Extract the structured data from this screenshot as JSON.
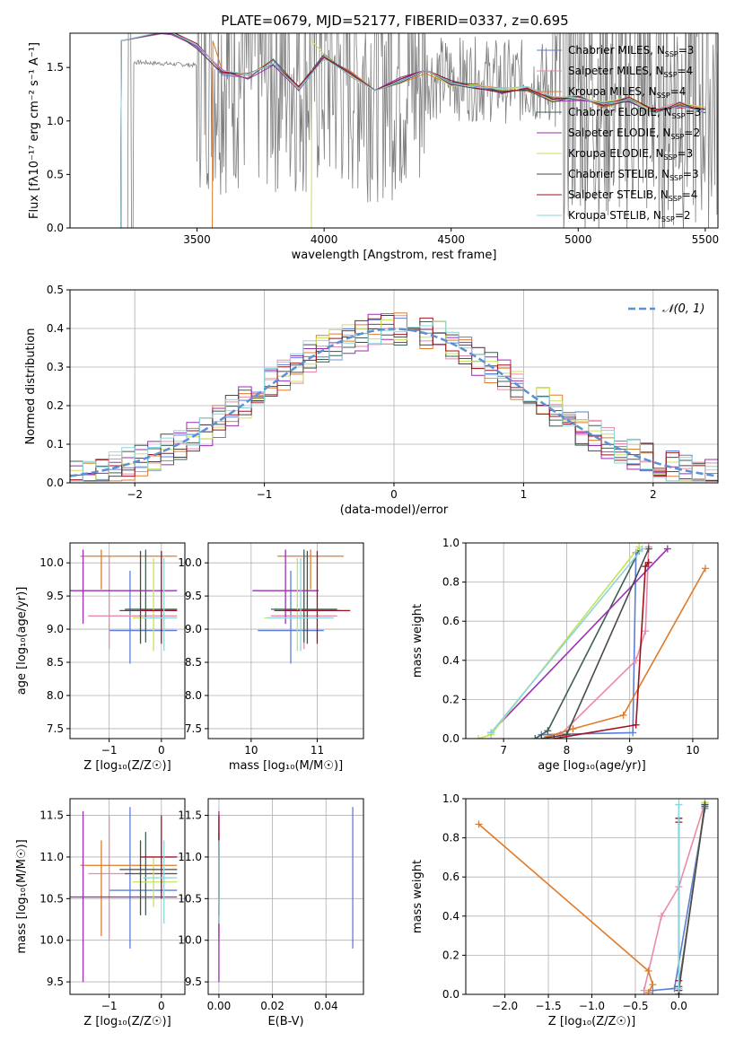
{
  "figure": {
    "title": "PLATE=0679, MJD=52177, FIBERID=0337, z=0.695"
  },
  "colors": {
    "Chabrier MILES": "#5b7fd6",
    "Salpeter MILES": "#e88aa8",
    "Kroupa MILES": "#e07b2a",
    "Chabrier ELODIE": "#3f5f55",
    "Salpeter ELODIE": "#9a2fb0",
    "Kroupa ELODIE": "#c9e05a",
    "Chabrier STELIB": "#4a4a4a",
    "Salpeter STELIB": "#a01020",
    "Kroupa STELIB": "#8ad6dc",
    "normal": "#5b8fd6",
    "data": "#7f7f7f"
  },
  "models": [
    {
      "name": "Chabrier MILES",
      "nssp": 3,
      "age": [
        7.6,
        9.05,
        9.1
      ],
      "mw": [
        0.02,
        0.03,
        0.95
      ],
      "Z": [
        -0.3,
        -0.05,
        0.3
      ],
      "mass": 10.6,
      "ebv": 0.05,
      "age_best": 8.98,
      "Z_best": -0.6,
      "mass_err": [
        9.9,
        11.6
      ]
    },
    {
      "name": "Salpeter MILES",
      "nssp": 4,
      "age": [
        7.9,
        9.1,
        9.25,
        9.3
      ],
      "mw": [
        0.02,
        0.4,
        0.55,
        0.98
      ],
      "Z": [
        -0.4,
        -0.2,
        0.0,
        0.3
      ],
      "mass": 10.8,
      "ebv": 0.0,
      "age_best": 9.2,
      "Z_best": -1.0,
      "mass_err": [
        10.0,
        11.5
      ]
    },
    {
      "name": "Kroupa MILES",
      "nssp": 4,
      "age": [
        7.7,
        8.1,
        8.9,
        10.2
      ],
      "mw": [
        0.01,
        0.05,
        0.12,
        0.87
      ],
      "Z": [
        -0.35,
        -0.3,
        -0.35,
        -2.3
      ],
      "mass": 10.9,
      "ebv": 0.0,
      "age_best": 10.1,
      "Z_best": -1.15,
      "mass_err": [
        10.05,
        11.2
      ]
    },
    {
      "name": "Chabrier ELODIE",
      "nssp": 3,
      "age": [
        7.5,
        7.7,
        9.15
      ],
      "mw": [
        0.0,
        0.04,
        0.96
      ],
      "Z": [
        0.0,
        0.0,
        0.3
      ],
      "mass": 10.8,
      "ebv": 0.0,
      "age_best": 9.3,
      "Z_best": -0.3,
      "mass_err": [
        10.3,
        11.3
      ]
    },
    {
      "name": "Salpeter ELODIE",
      "nssp": 2,
      "age": [
        6.8,
        9.6
      ],
      "mw": [
        0.03,
        0.97
      ],
      "Z": [
        0.0,
        0.3
      ],
      "mass": 10.52,
      "ebv": 0.0,
      "age_best": 9.58,
      "Z_best": -1.5,
      "mass_err": [
        9.5,
        11.55
      ]
    },
    {
      "name": "Kroupa ELODIE",
      "nssp": 3,
      "age": [
        6.6,
        6.8,
        9.15
      ],
      "mw": [
        0.0,
        0.02,
        0.98
      ],
      "Z": [
        0.0,
        0.0,
        0.3
      ],
      "mass": 10.7,
      "ebv": 0.0,
      "age_best": 9.17,
      "Z_best": -0.15,
      "mass_err": [
        10.4,
        11.0
      ]
    },
    {
      "name": "Chabrier STELIB",
      "nssp": 3,
      "age": [
        7.6,
        8.0,
        9.3
      ],
      "mw": [
        0.0,
        0.02,
        0.97
      ],
      "Z": [
        0.0,
        0.0,
        0.3
      ],
      "mass": 10.85,
      "ebv": 0.0,
      "age_best": 9.28,
      "Z_best": -0.4,
      "mass_err": [
        10.3,
        11.2
      ]
    },
    {
      "name": "Salpeter STELIB",
      "nssp": 4,
      "age": [
        7.8,
        9.1,
        9.25,
        9.3
      ],
      "mw": [
        0.0,
        0.07,
        0.88,
        0.9
      ],
      "Z": [
        0.0,
        0.0,
        0.0,
        0.0
      ],
      "mass": 11.0,
      "ebv": 0.0,
      "age_best": 9.28,
      "Z_best": 0.0,
      "mass_err": [
        10.5,
        11.5
      ]
    },
    {
      "name": "Kroupa STELIB",
      "nssp": 2,
      "age": [
        6.8,
        9.2
      ],
      "mw": [
        0.03,
        0.97
      ],
      "Z": [
        0.0,
        0.0
      ],
      "mass": 10.75,
      "ebv": 0.0,
      "age_best": 9.17,
      "Z_best": 0.05,
      "mass_err": [
        10.2,
        11.2
      ]
    }
  ],
  "chart_data": [
    {
      "type": "line",
      "id": "spectrum",
      "title": "PLATE=0679, MJD=52177, FIBERID=0337, z=0.695",
      "xlabel": "wavelength [Angstrom, rest frame]",
      "ylabel": "Flux [fλ10⁻¹⁷ erg cm⁻² s⁻¹ A⁻¹]",
      "xlim": [
        3000,
        5550
      ],
      "ylim": [
        0,
        1.82
      ],
      "xticks": [
        "3500",
        "4000",
        "4500",
        "5000",
        "5500"
      ],
      "yticks": [
        "0.0",
        "0.5",
        "1.0",
        "1.5"
      ],
      "grid": false,
      "legend": "right",
      "legend_entries": [
        "Chabrier MILES, N_SSP=3",
        "Salpeter MILES, N_SSP=4",
        "Kroupa MILES, N_SSP=4",
        "Chabrier ELODIE, N_SSP=3",
        "Salpeter ELODIE, N_SSP=2",
        "Kroupa ELODIE, N_SSP=3",
        "Chabrier STELIB, N_SSP=3",
        "Salpeter STELIB, N_SSP=4",
        "Kroupa STELIB, N_SSP=2"
      ],
      "model_start": {
        "Chabrier MILES": 3200,
        "Salpeter MILES": 3200,
        "Kroupa MILES": 3560,
        "Chabrier ELODIE": 3200,
        "Salpeter ELODIE": 3200,
        "Kroupa ELODIE": 3950,
        "Chabrier STELIB": 3200,
        "Salpeter STELIB": 3200,
        "Kroupa STELIB": 3200
      },
      "model_curve": {
        "x": [
          3200,
          3350,
          3400,
          3500,
          3600,
          3700,
          3800,
          3900,
          4000,
          4100,
          4200,
          4300,
          4400,
          4500,
          4600,
          4700,
          4800,
          4900,
          5000,
          5100,
          5200,
          5300,
          5400,
          5500
        ],
        "y": [
          1.82,
          1.8,
          1.82,
          1.7,
          1.45,
          1.42,
          1.55,
          1.3,
          1.6,
          1.45,
          1.3,
          1.38,
          1.45,
          1.35,
          1.32,
          1.28,
          1.3,
          1.2,
          1.22,
          1.15,
          1.2,
          1.1,
          1.15,
          1.1
        ]
      }
    },
    {
      "type": "line",
      "id": "residuals",
      "xlabel": "(data-model)/error",
      "ylabel": "Normed distribution",
      "xlim": [
        -2.5,
        2.5
      ],
      "ylim": [
        0,
        0.5
      ],
      "xticks": [
        "−2",
        "−1",
        "0",
        "1",
        "2"
      ],
      "yticks": [
        "0.0",
        "0.1",
        "0.2",
        "0.3",
        "0.4",
        "0.5"
      ],
      "grid": true,
      "legend": "top-right",
      "legend_entries": [
        "𝒩(0, 1)"
      ],
      "series": [
        {
          "name": "𝒩(0, 1)",
          "mu": 0,
          "sigma": 1
        }
      ]
    },
    {
      "type": "scatter",
      "id": "age-vs-Z",
      "xlabel": "Z [log₁₀(Z/Z☉)]",
      "ylabel": "age  [log₁₀(age/yr)]",
      "xlim": [
        -1.75,
        0.45
      ],
      "ylim": [
        7.35,
        10.3
      ],
      "xticks": [
        "−1",
        "0"
      ],
      "yticks": [
        "7.5",
        "8.0",
        "8.5",
        "9.0",
        "9.5",
        "10.0"
      ],
      "grid": true
    },
    {
      "type": "scatter",
      "id": "age-vs-mass",
      "xlabel": "mass [log₁₀(M/M☉)]",
      "ylabel": "",
      "xlim": [
        9.35,
        11.7
      ],
      "ylim": [
        7.35,
        10.3
      ],
      "xticks": [
        "10",
        "11"
      ],
      "yticks": [
        "7.5",
        "8.0",
        "8.5",
        "9.0",
        "9.5",
        "10.0"
      ],
      "grid": true
    },
    {
      "type": "line",
      "id": "mw-vs-age",
      "xlabel": "age  [log₁₀(age/yr)]",
      "ylabel": "mass weight",
      "xlim": [
        6.4,
        10.4
      ],
      "ylim": [
        0,
        1.0
      ],
      "xticks": [
        "7",
        "8",
        "9",
        "10"
      ],
      "yticks": [
        "0.0",
        "0.2",
        "0.4",
        "0.6",
        "0.8",
        "1.0"
      ],
      "grid": true
    },
    {
      "type": "scatter",
      "id": "mass-vs-Z",
      "xlabel": "Z [log₁₀(Z/Z☉)]",
      "ylabel": "mass [log₁₀(M/M☉)]",
      "xlim": [
        -1.75,
        0.45
      ],
      "ylim": [
        9.35,
        11.7
      ],
      "xticks": [
        "−1",
        "0"
      ],
      "yticks": [
        "9.5",
        "10.0",
        "10.5",
        "11.0",
        "11.5"
      ],
      "grid": true
    },
    {
      "type": "scatter",
      "id": "mass-vs-ebv",
      "xlabel": "E(B-V)",
      "ylabel": "",
      "xlim": [
        -0.004,
        0.054
      ],
      "ylim": [
        9.35,
        11.7
      ],
      "xticks": [
        "0.00",
        "0.02",
        "0.04"
      ],
      "yticks": [
        "9.5",
        "10.0",
        "10.5",
        "11.0",
        "11.5"
      ],
      "grid": true
    },
    {
      "type": "line",
      "id": "mw-vs-Z",
      "xlabel": "Z [log₁₀(Z/Z☉)]",
      "ylabel": "mass weight",
      "xlim": [
        -2.45,
        0.45
      ],
      "ylim": [
        0,
        1.0
      ],
      "xticks": [
        "−2.0",
        "−1.5",
        "−1.0",
        "−0.5",
        "0.0"
      ],
      "yticks": [
        "0.0",
        "0.2",
        "0.4",
        "0.6",
        "0.8",
        "1.0"
      ],
      "grid": true
    }
  ]
}
